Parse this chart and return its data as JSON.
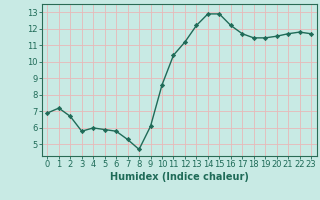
{
  "x": [
    0,
    1,
    2,
    3,
    4,
    5,
    6,
    7,
    8,
    9,
    10,
    11,
    12,
    13,
    14,
    15,
    16,
    17,
    18,
    19,
    20,
    21,
    22,
    23
  ],
  "y": [
    6.9,
    7.2,
    6.7,
    5.8,
    6.0,
    5.9,
    5.8,
    5.3,
    4.7,
    6.1,
    8.6,
    10.4,
    11.2,
    12.2,
    12.9,
    12.9,
    12.2,
    11.7,
    11.45,
    11.45,
    11.55,
    11.7,
    11.8,
    11.7
  ],
  "line_color": "#1f6b58",
  "marker": "D",
  "marker_size": 2.2,
  "bg_color": "#c8eae4",
  "grid_color": "#e8b8b8",
  "xlabel": "Humidex (Indice chaleur)",
  "xlim": [
    -0.5,
    23.5
  ],
  "ylim": [
    4.3,
    13.5
  ],
  "yticks": [
    5,
    6,
    7,
    8,
    9,
    10,
    11,
    12,
    13
  ],
  "xticks": [
    0,
    1,
    2,
    3,
    4,
    5,
    6,
    7,
    8,
    9,
    10,
    11,
    12,
    13,
    14,
    15,
    16,
    17,
    18,
    19,
    20,
    21,
    22,
    23
  ],
  "xlabel_fontsize": 7,
  "tick_fontsize": 6,
  "line_width": 1.0
}
